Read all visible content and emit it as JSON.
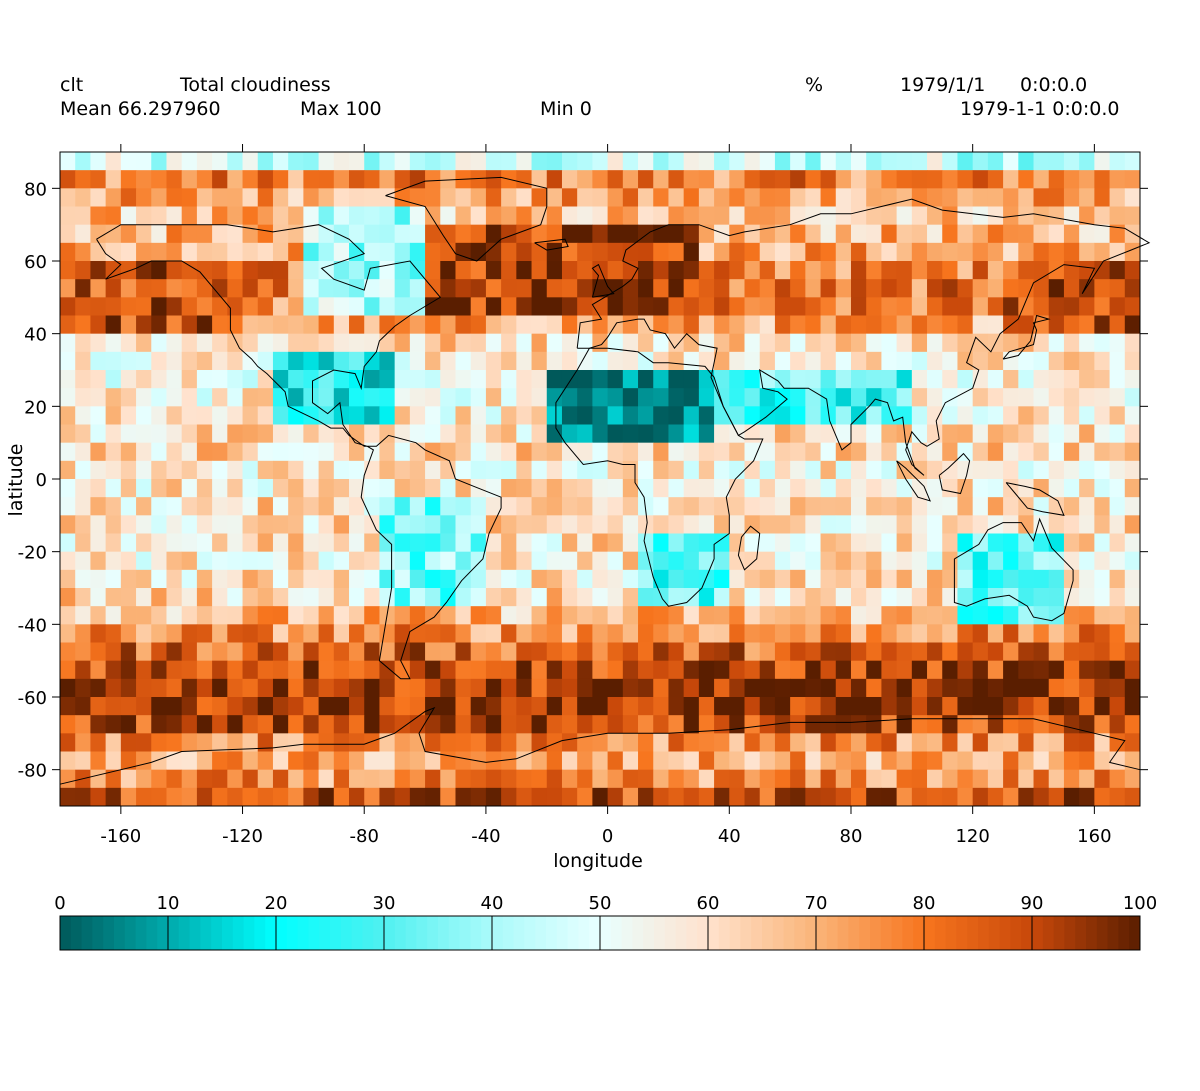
{
  "header": {
    "variable": "clt",
    "long_name": "Total cloudiness",
    "units": "%",
    "date": "1979/1/1",
    "time": "0:0:0.0",
    "datetime": "1979-1-1 0:0:0.0",
    "mean_label": "Mean 66.297960",
    "max_label": "Max 100",
    "min_label": "Min 0"
  },
  "chart_data": {
    "type": "heatmap",
    "title": "Total cloudiness",
    "xlabel": "longitude",
    "ylabel": "latitude",
    "xlim": [
      -180,
      175
    ],
    "ylim": [
      -90,
      90
    ],
    "x_ticks": [
      -160,
      -120,
      -80,
      -40,
      0,
      40,
      80,
      120,
      160
    ],
    "y_ticks": [
      80,
      60,
      40,
      20,
      0,
      -20,
      -40,
      -60,
      -80
    ],
    "x_tick_labels": [
      "-160",
      "-120",
      "-80",
      "-40",
      "0",
      "40",
      "80",
      "120",
      "160"
    ],
    "y_tick_labels": [
      "80",
      "60",
      "40",
      "20",
      "0",
      "-20",
      "-40",
      "-60",
      "-80"
    ],
    "grid_resolution_deg": 5,
    "value_range": [
      0,
      100
    ],
    "mean": 66.29796,
    "max": 100,
    "min": 0,
    "approx_zonal_mean_by_lat": [
      {
        "lat": 87.5,
        "value": 45
      },
      {
        "lat": 82.5,
        "value": 78
      },
      {
        "lat": 77.5,
        "value": 72
      },
      {
        "lat": 72.5,
        "value": 66
      },
      {
        "lat": 67.5,
        "value": 68
      },
      {
        "lat": 62.5,
        "value": 72
      },
      {
        "lat": 57.5,
        "value": 78
      },
      {
        "lat": 52.5,
        "value": 80
      },
      {
        "lat": 47.5,
        "value": 78
      },
      {
        "lat": 42.5,
        "value": 72
      },
      {
        "lat": 37.5,
        "value": 62
      },
      {
        "lat": 32.5,
        "value": 58
      },
      {
        "lat": 27.5,
        "value": 55
      },
      {
        "lat": 22.5,
        "value": 56
      },
      {
        "lat": 17.5,
        "value": 58
      },
      {
        "lat": 12.5,
        "value": 60
      },
      {
        "lat": 7.5,
        "value": 62
      },
      {
        "lat": 2.5,
        "value": 58
      },
      {
        "lat": -2.5,
        "value": 58
      },
      {
        "lat": -7.5,
        "value": 60
      },
      {
        "lat": -12.5,
        "value": 60
      },
      {
        "lat": -17.5,
        "value": 60
      },
      {
        "lat": -22.5,
        "value": 58
      },
      {
        "lat": -27.5,
        "value": 60
      },
      {
        "lat": -32.5,
        "value": 62
      },
      {
        "lat": -37.5,
        "value": 68
      },
      {
        "lat": -42.5,
        "value": 76
      },
      {
        "lat": -47.5,
        "value": 84
      },
      {
        "lat": -52.5,
        "value": 90
      },
      {
        "lat": -57.5,
        "value": 93
      },
      {
        "lat": -62.5,
        "value": 94
      },
      {
        "lat": -67.5,
        "value": 90
      },
      {
        "lat": -72.5,
        "value": 76
      },
      {
        "lat": -77.5,
        "value": 70
      },
      {
        "lat": -82.5,
        "value": 75
      },
      {
        "lat": -87.5,
        "value": 88
      }
    ],
    "colorbar": {
      "ticks": [
        0,
        10,
        20,
        30,
        40,
        50,
        60,
        70,
        80,
        90,
        100
      ],
      "tick_labels": [
        "0",
        "10",
        "20",
        "30",
        "40",
        "50",
        "60",
        "70",
        "80",
        "90",
        "100"
      ],
      "orientation": "horizontal",
      "placement": "bottom"
    },
    "colors": {
      "low": "#00595a",
      "cyan": "#00ffff",
      "light": "#e8ffff",
      "mid": "#ffd8b8",
      "orange": "#f7751e",
      "high": "#5a1e00"
    }
  }
}
